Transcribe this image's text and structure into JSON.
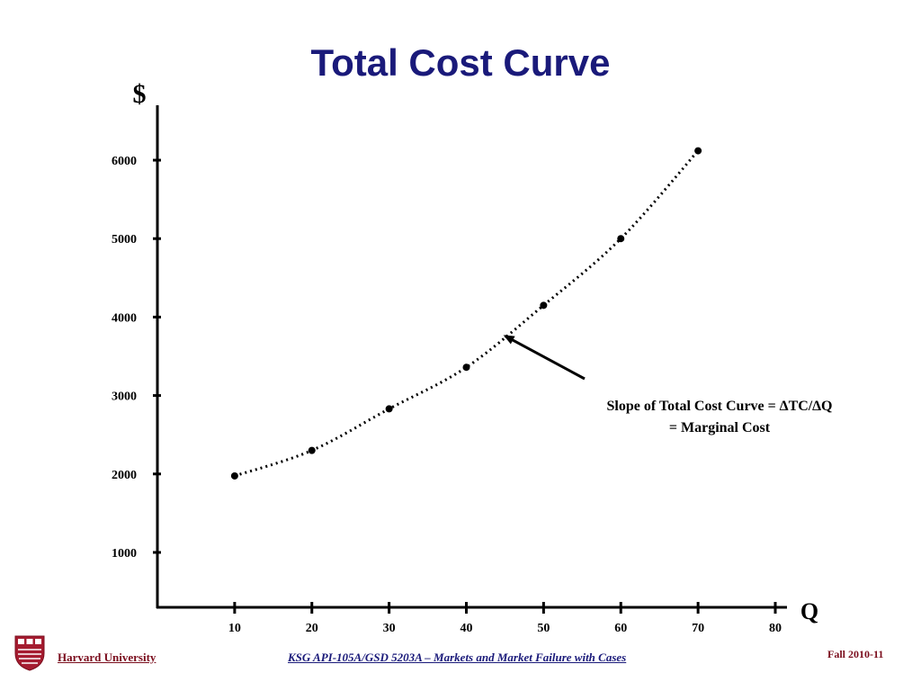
{
  "chart_data": {
    "type": "line",
    "title": "Total Cost Curve",
    "ylabel": "$",
    "xlabel": "Q",
    "x": [
      10,
      20,
      30,
      40,
      50,
      60,
      70
    ],
    "series": [
      {
        "values": [
          1975,
          2300,
          2830,
          3360,
          4150,
          5000,
          6120
        ]
      }
    ],
    "xlim": [
      0,
      80
    ],
    "ylim": [
      300,
      6700
    ],
    "x_ticks": [
      10,
      20,
      30,
      40,
      50,
      60,
      70,
      80
    ],
    "x_tick_labels": [
      "10",
      "20",
      "30",
      "40",
      "50",
      "60",
      "70",
      "80"
    ],
    "y_ticks": [
      1000,
      2000,
      3000,
      4000,
      5000,
      6000
    ],
    "y_tick_labels": [
      "1000",
      "2000",
      "3000",
      "4000",
      "5000",
      "6000"
    ],
    "grid": false,
    "line_style": "dotted",
    "annotation": {
      "line1": "Slope of Total Cost Curve = ∆TC/∆Q",
      "line2": "= Marginal Cost",
      "points_to": {
        "x": 45,
        "y": 3760
      }
    }
  },
  "footer": {
    "left": "Harvard University",
    "center": "KSG API-105A/GSD 5203A – Markets and Market Failure with Cases",
    "right": "Fall 2010-11"
  },
  "colors": {
    "title": "#1a1a7a",
    "footer_left": "#7a0c1c",
    "footer_center": "#1a1a7a",
    "shield": "#a51c30"
  }
}
